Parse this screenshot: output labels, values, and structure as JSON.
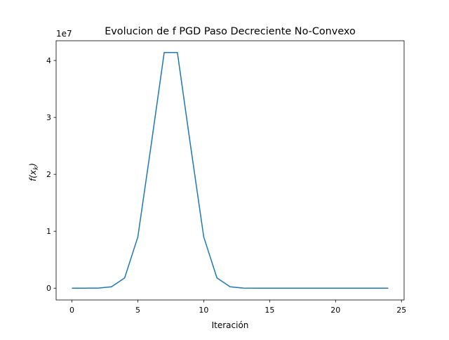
{
  "chart_data": {
    "type": "line",
    "title": "Evolucion de f PGD Paso Decreciente No-Convexo",
    "xlabel": "Iteración",
    "ylabel": "f(x_k)",
    "ylabel_main": "f(x",
    "ylabel_sub": "k",
    "ylabel_close": ")",
    "y_offset_label": "1e7",
    "xlim": [
      -1.2,
      25.2
    ],
    "ylim": [
      -2070000,
      43470000
    ],
    "x_ticks": [
      0,
      5,
      10,
      15,
      20,
      25
    ],
    "y_ticks": [
      0,
      10000000,
      20000000,
      30000000,
      40000000
    ],
    "x_tick_labels": [
      "0",
      "5",
      "10",
      "15",
      "20",
      "25"
    ],
    "y_tick_labels": [
      "0",
      "1",
      "2",
      "3",
      "4"
    ],
    "grid": false,
    "series": [
      {
        "color": "#1f77b4",
        "x": [
          0,
          1,
          2,
          3,
          4,
          5,
          6,
          7,
          8,
          9,
          10,
          11,
          12,
          13,
          14,
          15,
          16,
          17,
          18,
          19,
          20,
          21,
          22,
          23,
          24
        ],
        "values": [
          2000,
          4000,
          20000,
          250000,
          1800000,
          9000000,
          25000000,
          41400000,
          41400000,
          25000000,
          9000000,
          1800000,
          250000,
          20000,
          4000,
          2000,
          1000,
          1000,
          1000,
          1000,
          1000,
          1000,
          1000,
          1000,
          1000
        ]
      }
    ]
  }
}
